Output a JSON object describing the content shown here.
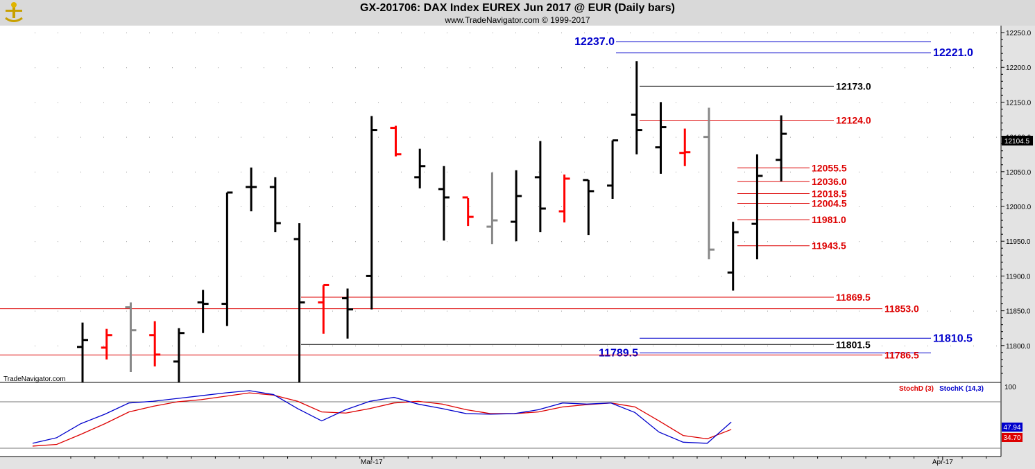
{
  "header": {
    "title": "GX-201706:  DAX Index EUREX Jun 2017 @ EUR  (Daily bars)",
    "copyright": "www.TradeNavigator.com © 1999-2017"
  },
  "watermark": "TradeNavigator.com",
  "colors": {
    "bar_up": "#000000",
    "bar_red": "#ff0000",
    "bar_green": "#22cc22",
    "bar_gray": "#888888",
    "level_red": "#dd0000",
    "level_blue": "#0000cc",
    "level_black": "#000000",
    "stochd": "#dd0000",
    "stochk": "#0000cc"
  },
  "chart_data": {
    "type": "ohlc",
    "price_ticks": [
      "12250.0",
      "12200.0",
      "12150.0",
      "12100.0",
      "12050.0",
      "12000.0",
      "11950.0",
      "11900.0",
      "11850.0",
      "11800.0"
    ],
    "price_tick_values": [
      12250,
      12200,
      12150,
      12100,
      12050,
      12000,
      11950,
      11900,
      11850,
      11800
    ],
    "ylim": [
      11747,
      12260
    ],
    "x_labels": [
      "Mar-17",
      "Apr-17"
    ],
    "x_label_index": [
      12,
      35.7
    ],
    "last_price_label": "12104.5",
    "last_price": 12104.5,
    "bars": [
      {
        "o": 11798,
        "h": 11833,
        "l": 11747,
        "c": 11808,
        "color": "black"
      },
      {
        "o": 11797,
        "h": 11824,
        "l": 11780,
        "c": 11815,
        "color": "red"
      },
      {
        "o": 11855,
        "h": 11862,
        "l": 11762,
        "c": 11822,
        "color": "gray"
      },
      {
        "o": 11815,
        "h": 11835,
        "l": 11770,
        "c": 11787,
        "color": "red"
      },
      {
        "o": 11777,
        "h": 11825,
        "l": 11747,
        "c": 11818,
        "color": "black"
      },
      {
        "o": 11862,
        "h": 11880,
        "l": 11818,
        "c": 11860,
        "color": "black"
      },
      {
        "o": 11860,
        "h": 12020,
        "l": 11828,
        "c": 12020,
        "color": "black"
      },
      {
        "o": 12028,
        "h": 12056,
        "l": 11993,
        "c": 12028,
        "color": "black"
      },
      {
        "o": 12028,
        "h": 12042,
        "l": 11963,
        "c": 11976,
        "color": "black"
      },
      {
        "o": 11953,
        "h": 11976,
        "l": 11747,
        "c": 11862,
        "color": "black"
      },
      {
        "o": 11862,
        "h": 11887,
        "l": 11817,
        "c": 11887,
        "color": "red"
      },
      {
        "o": 11868,
        "h": 11882,
        "l": 11810,
        "c": 11852,
        "color": "black"
      },
      {
        "o": 11900,
        "h": 12130,
        "l": 11852,
        "c": 12110,
        "color": "black"
      },
      {
        "o": 12113,
        "h": 12116,
        "l": 12072,
        "c": 12075,
        "color": "red"
      },
      {
        "o": 12042,
        "h": 12083,
        "l": 12026,
        "c": 12058,
        "color": "black"
      },
      {
        "o": 12025,
        "h": 12058,
        "l": 11951,
        "c": 12013,
        "color": "black"
      },
      {
        "o": 12013,
        "h": 12012,
        "l": 11972,
        "c": 11985,
        "color": "red"
      },
      {
        "o": 11971,
        "h": 12049,
        "l": 11946,
        "c": 11980,
        "color": "gray"
      },
      {
        "o": 11978,
        "h": 12052,
        "l": 11950,
        "c": 12015,
        "color": "black"
      },
      {
        "o": 12042,
        "h": 12094,
        "l": 11963,
        "c": 11997,
        "color": "black"
      },
      {
        "o": 11993,
        "h": 12046,
        "l": 11977,
        "c": 12040,
        "color": "red"
      },
      {
        "o": 12038,
        "h": 12038,
        "l": 11959,
        "c": 12022,
        "color": "black"
      },
      {
        "o": 12030,
        "h": 12095,
        "l": 12011,
        "c": 12095,
        "color": "black"
      },
      {
        "o": 12132,
        "h": 12209,
        "l": 12075,
        "c": 12110,
        "color": "black"
      },
      {
        "o": 12085,
        "h": 12150,
        "l": 12047,
        "c": 12114,
        "color": "black"
      },
      {
        "o": 12077,
        "h": 12112,
        "l": 12058,
        "c": 12078,
        "color": "red"
      },
      {
        "o": 12100,
        "h": 12142,
        "l": 11924,
        "c": 11938,
        "color": "gray"
      },
      {
        "o": 11905,
        "h": 11978,
        "l": 11879,
        "c": 11963,
        "color": "black"
      },
      {
        "o": 11975,
        "h": 12075,
        "l": 11924,
        "c": 12044,
        "color": "black"
      },
      {
        "o": 12067,
        "h": 12131,
        "l": 12036,
        "c": 12104.5,
        "color": "black"
      }
    ],
    "levels": [
      {
        "label": "12237.0",
        "value": 12237,
        "color": "blue",
        "x1": 888,
        "x2": 1342,
        "label_side": "left",
        "size": "big"
      },
      {
        "label": "12221.0",
        "value": 12221,
        "color": "blue",
        "x1": 888,
        "x2": 1342,
        "label_side": "right",
        "size": "big"
      },
      {
        "label": "12173.0",
        "value": 12173,
        "color": "black",
        "x1": 922,
        "x2": 1202,
        "label_side": "right",
        "size": "norm"
      },
      {
        "label": "12124.0",
        "value": 12124,
        "color": "red",
        "x1": 922,
        "x2": 1202,
        "label_side": "right",
        "size": "norm"
      },
      {
        "label": "12055.5",
        "value": 12055.5,
        "color": "red",
        "x1": 1063,
        "x2": 1167,
        "label_side": "right",
        "size": "norm"
      },
      {
        "label": "12036.0",
        "value": 12036,
        "color": "red",
        "x1": 1063,
        "x2": 1167,
        "label_side": "right",
        "size": "norm"
      },
      {
        "label": "12018.5",
        "value": 12018.5,
        "color": "red",
        "x1": 1063,
        "x2": 1167,
        "label_side": "right",
        "size": "norm"
      },
      {
        "label": "12004.5",
        "value": 12004.5,
        "color": "red",
        "x1": 1063,
        "x2": 1167,
        "label_side": "right",
        "size": "norm"
      },
      {
        "label": "11981.0",
        "value": 11981,
        "color": "red",
        "x1": 1063,
        "x2": 1167,
        "label_side": "right",
        "size": "norm"
      },
      {
        "label": "11943.5",
        "value": 11943.5,
        "color": "red",
        "x1": 1063,
        "x2": 1167,
        "label_side": "right",
        "size": "norm"
      },
      {
        "label": "11869.5",
        "value": 11869.5,
        "color": "red",
        "x1": 434,
        "x2": 1202,
        "label_side": "right",
        "size": "norm"
      },
      {
        "label": "11853.0",
        "value": 11853,
        "color": "red",
        "x1": 0,
        "x2": 1272,
        "label_side": "right",
        "size": "norm"
      },
      {
        "label": "11810.5",
        "value": 11810.5,
        "color": "blue",
        "x1": 922,
        "x2": 1342,
        "label_side": "right",
        "size": "big"
      },
      {
        "label": "11801.5",
        "value": 11801.5,
        "color": "black",
        "x1": 434,
        "x2": 1202,
        "label_side": "right",
        "size": "norm"
      },
      {
        "label": "11789.5",
        "value": 11789.5,
        "color": "blue",
        "x1": 922,
        "x2": 1342,
        "label_side": "left",
        "size": "big"
      },
      {
        "label": "11786.5",
        "value": 11786.5,
        "color": "red",
        "x1": 0,
        "x2": 1272,
        "label_side": "right",
        "size": "norm"
      }
    ],
    "indicator": {
      "stochd_label": "StochD (3)",
      "stochk_label": "StochK (14,3)",
      "tick_label": "100",
      "stochk_last": "47.94",
      "stochd_last": "34.70",
      "ylim": [
        0,
        115
      ],
      "stochk": [
        10,
        20,
        45,
        62,
        82,
        85,
        90,
        95,
        100,
        104,
        97,
        72,
        50,
        70,
        85,
        92,
        80,
        72,
        63,
        62,
        63,
        70,
        82,
        80,
        82,
        65,
        30,
        12,
        10,
        47.94
      ],
      "stochd": [
        5,
        8,
        26,
        45,
        66,
        76,
        84,
        88,
        94,
        100,
        96,
        85,
        66,
        64,
        72,
        82,
        85,
        80,
        70,
        63,
        63,
        66,
        75,
        79,
        82,
        75,
        50,
        24,
        18,
        34.7
      ]
    }
  }
}
